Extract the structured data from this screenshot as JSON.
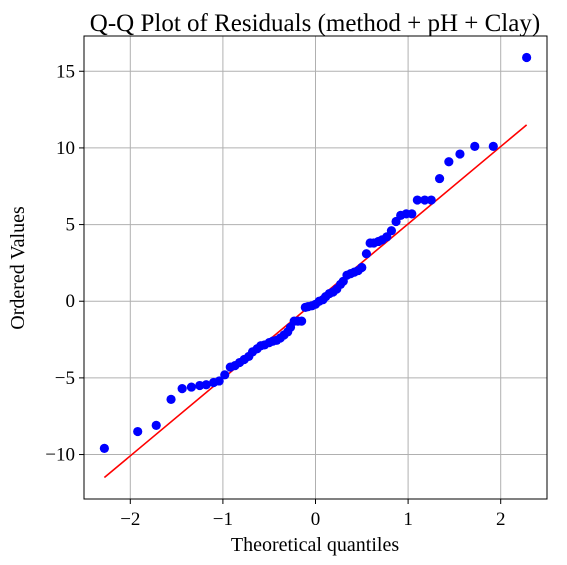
{
  "chart_data": {
    "type": "scatter",
    "title": "Q-Q Plot of Residuals (method + pH + Clay)",
    "xlabel": "Theoretical quantiles",
    "ylabel": "Ordered Values",
    "xlim": [
      -2.5,
      2.5
    ],
    "ylim": [
      -12.9,
      17.3
    ],
    "xticks": [
      -2,
      -1,
      0,
      1,
      2
    ],
    "xtick_labels": [
      "−2",
      "−1",
      "0",
      "1",
      "2"
    ],
    "yticks": [
      -10,
      -5,
      0,
      5,
      10,
      15
    ],
    "ytick_labels": [
      "−10",
      "−5",
      "0",
      "5",
      "10",
      "15"
    ],
    "grid": true,
    "colors": {
      "points": "#0000ff",
      "fit_line": "#ff0000",
      "grid": "#b0b0b0"
    },
    "fit_line": {
      "x": [
        -2.28,
        2.28
      ],
      "y": [
        -11.5,
        11.5
      ]
    },
    "series": [
      {
        "x": [
          -2.28,
          -1.92,
          -1.72,
          -1.56,
          -1.44,
          -1.34,
          -1.25,
          -1.18,
          -1.1,
          -1.04,
          -0.98,
          -0.92,
          -0.87,
          -0.82,
          -0.77,
          -0.72,
          -0.68,
          -0.63,
          -0.59,
          -0.55,
          -0.5,
          -0.46,
          -0.42,
          -0.38,
          -0.34,
          -0.3,
          -0.27,
          -0.23,
          -0.19,
          -0.15,
          -0.11,
          -0.08,
          -0.04,
          0.0,
          0.04,
          0.08,
          0.11,
          0.15,
          0.19,
          0.23,
          0.27,
          0.3,
          0.34,
          0.38,
          0.42,
          0.46,
          0.5,
          0.55,
          0.59,
          0.63,
          0.68,
          0.72,
          0.77,
          0.82,
          0.87,
          0.92,
          0.98,
          1.04,
          1.1,
          1.18,
          1.25,
          1.34,
          1.44,
          1.56,
          1.72,
          1.92,
          2.28
        ],
        "y": [
          -9.6,
          -8.5,
          -8.1,
          -6.4,
          -5.7,
          -5.6,
          -5.5,
          -5.45,
          -5.3,
          -5.2,
          -4.8,
          -4.3,
          -4.2,
          -4.0,
          -3.8,
          -3.6,
          -3.3,
          -3.1,
          -2.9,
          -2.85,
          -2.7,
          -2.6,
          -2.55,
          -2.4,
          -2.2,
          -2.0,
          -1.7,
          -1.3,
          -1.3,
          -1.3,
          -0.4,
          -0.35,
          -0.3,
          -0.2,
          0.0,
          0.1,
          0.3,
          0.5,
          0.6,
          0.8,
          1.1,
          1.3,
          1.7,
          1.8,
          1.9,
          2.0,
          2.2,
          3.1,
          3.8,
          3.8,
          3.9,
          4.0,
          4.2,
          4.6,
          5.2,
          5.6,
          5.7,
          5.7,
          6.6,
          6.6,
          6.6,
          8.0,
          9.1,
          9.6,
          10.1,
          10.1,
          15.9
        ]
      }
    ]
  }
}
